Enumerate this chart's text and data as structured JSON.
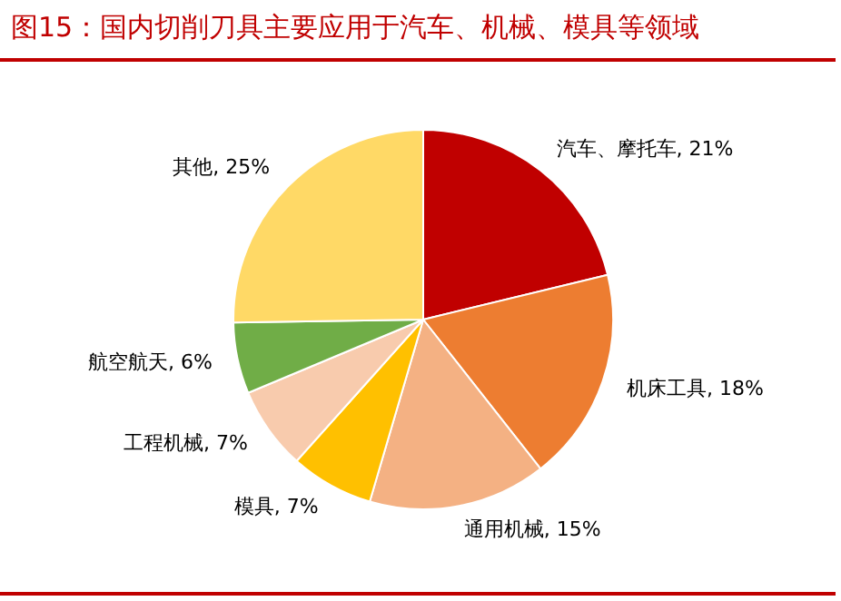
{
  "chart_data": {
    "type": "pie",
    "title": "图15：国内切削刀具主要应用于汽车、机械、模具等领域",
    "categories": [
      "汽车、摩托车",
      "机床工具",
      "通用机械",
      "模具",
      "工程机械",
      "航空航天",
      "其他"
    ],
    "values": [
      21,
      18,
      15,
      7,
      7,
      6,
      25
    ],
    "value_labels": [
      "21%",
      "18%",
      "15%",
      "7%",
      "7%",
      "6%",
      "25%"
    ],
    "colors": [
      "#c00000",
      "#ed7d31",
      "#f4b183",
      "#ffc000",
      "#f8cbad",
      "#70ad47",
      "#ffd966"
    ],
    "legend": false
  }
}
